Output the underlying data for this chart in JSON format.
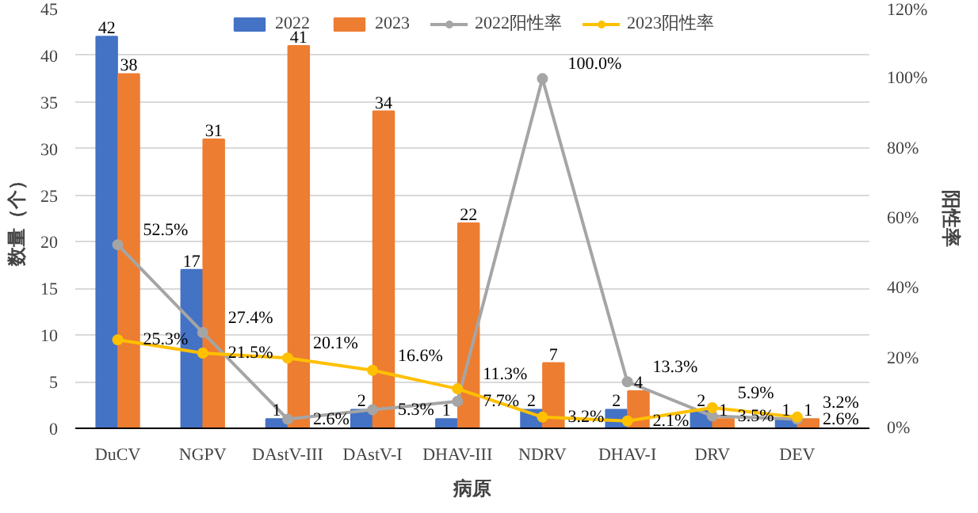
{
  "chart_data": {
    "type": "bar",
    "xlabel": "病原",
    "ylabel": "数量（个）",
    "y2label": "阳性率",
    "categories": [
      "DuCV",
      "NGPV",
      "DAstV-III",
      "DAstV-I",
      "DHAV-III",
      "NDRV",
      "DHAV-I",
      "DRV",
      "DEV"
    ],
    "series": [
      {
        "name": "2022",
        "color": "#4472c4",
        "values": [
          42,
          17,
          1,
          2,
          1,
          2,
          2,
          2,
          1
        ],
        "value_labels": [
          "42",
          "17",
          "1",
          "2",
          "1",
          "2",
          "2",
          "2",
          "1"
        ]
      },
      {
        "name": "2023",
        "color": "#ed7d31",
        "values": [
          38,
          31,
          41,
          34,
          22,
          7,
          4,
          1,
          1
        ],
        "value_labels": [
          "38",
          "31",
          "41",
          "34",
          "22",
          "7",
          "4",
          "1",
          "1"
        ]
      },
      {
        "name": "2022阳性率",
        "type": "line",
        "axis": "y2",
        "color": "#a5a5a5",
        "values": [
          52.5,
          27.4,
          2.6,
          5.3,
          7.7,
          100.0,
          13.3,
          3.5,
          2.6
        ],
        "value_labels": [
          "52.5%",
          "27.4%",
          "2.6%",
          "5.3%",
          "7.7%",
          "100.0%",
          "13.3%",
          "3.5%",
          "2.6%"
        ]
      },
      {
        "name": "2023阳性率",
        "type": "line",
        "axis": "y2",
        "color": "#ffc000",
        "values": [
          25.3,
          21.5,
          20.1,
          16.6,
          11.3,
          3.2,
          2.1,
          5.9,
          3.2
        ],
        "value_labels": [
          "25.3%",
          "21.5%",
          "20.1%",
          "16.6%",
          "11.3%",
          "3.2%",
          "2.1%",
          "5.9%",
          "3.2%"
        ]
      }
    ],
    "ylim": [
      0,
      45
    ],
    "yticks": [
      0,
      5,
      10,
      15,
      20,
      25,
      30,
      35,
      40,
      45
    ],
    "y2lim": [
      0,
      120
    ],
    "y2ticks": [
      {
        "value": 0,
        "label": "0%"
      },
      {
        "value": 20,
        "label": "20%"
      },
      {
        "value": 40,
        "label": "40%"
      },
      {
        "value": 60,
        "label": "60%"
      },
      {
        "value": 80,
        "label": "80%"
      },
      {
        "value": 100,
        "label": "100%"
      },
      {
        "value": 120,
        "label": "120%"
      }
    ],
    "grid": "y",
    "legend": "top",
    "marker": "circle",
    "line_style": "solid"
  }
}
